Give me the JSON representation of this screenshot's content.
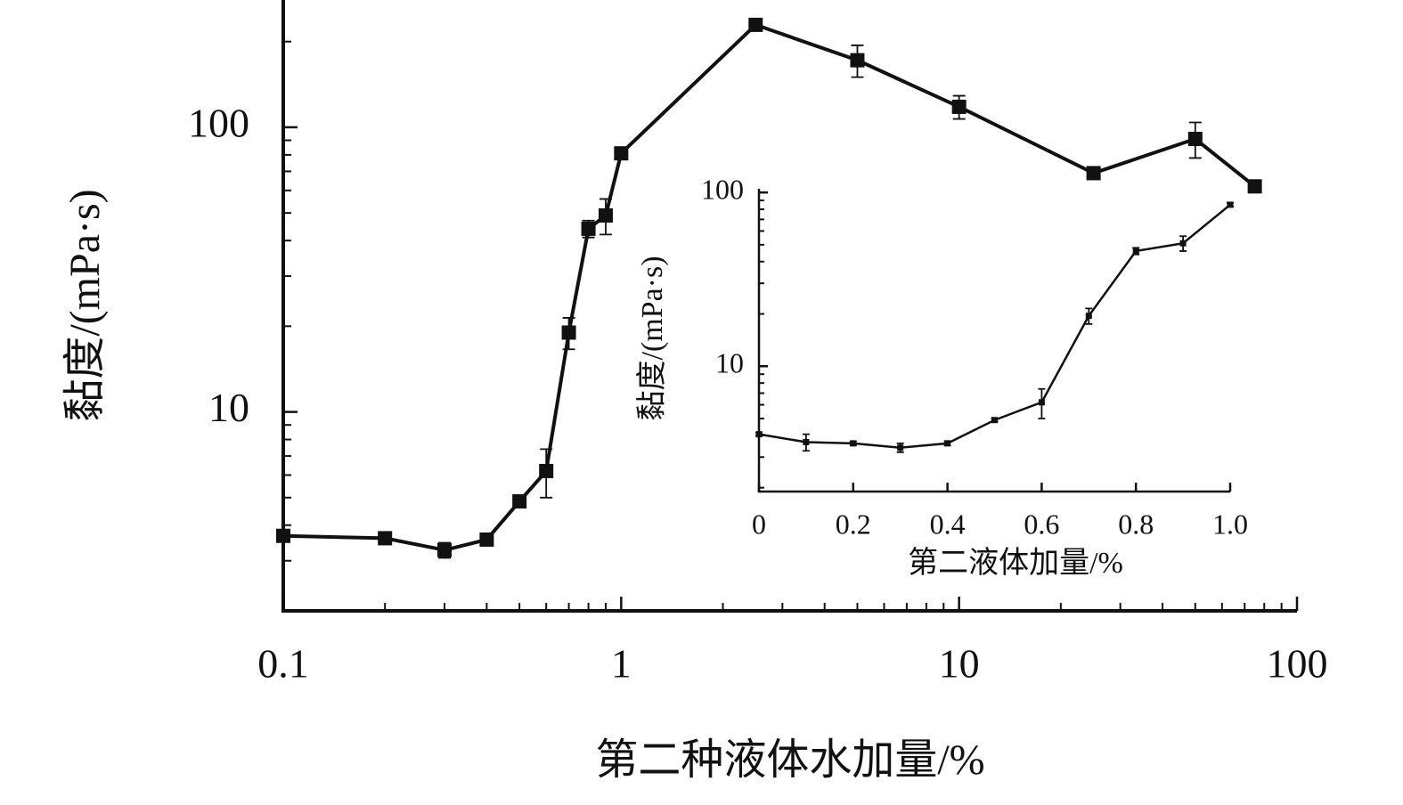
{
  "chart_data": [
    {
      "type": "line",
      "x_label": "第二种液体水加量/%",
      "y_label": "黏度/(mPa·s)",
      "xscale": "log",
      "yscale": "log",
      "color": "#111111",
      "x": [
        0.1,
        0.2,
        0.3,
        0.4,
        0.5,
        0.6,
        0.7,
        0.8,
        0.9,
        1.0,
        2.5,
        5,
        10,
        25,
        50,
        75
      ],
      "values": [
        3.67,
        3.6,
        3.27,
        3.56,
        4.85,
        6.2,
        19,
        44,
        49,
        81,
        229,
        172,
        118,
        69,
        91,
        62
      ],
      "errors": [
        0.1,
        0.1,
        0.2,
        0.1,
        0.1,
        1.2,
        2.4,
        3,
        7,
        2,
        5,
        22,
        11,
        3,
        13,
        2
      ],
      "xlim": [
        0.1,
        100
      ],
      "xticks": [
        0.1,
        1,
        10,
        100
      ],
      "ylim": [
        2,
        280
      ],
      "yticks": [
        10,
        100
      ]
    },
    {
      "type": "line",
      "x_label": "第二液体加量/%",
      "y_label": "黏度/(mPa·s)",
      "xscale": "linear",
      "yscale": "log",
      "color": "#111111",
      "x": [
        0,
        0.1,
        0.2,
        0.3,
        0.4,
        0.5,
        0.6,
        0.7,
        0.8,
        0.9,
        1.0
      ],
      "values": [
        4.06,
        3.66,
        3.6,
        3.4,
        3.6,
        4.9,
        6.2,
        19.5,
        46,
        51,
        85
      ],
      "errors": [
        0.1,
        0.4,
        0.1,
        0.2,
        0.1,
        0.1,
        1.2,
        2,
        2,
        5,
        2
      ],
      "xlim": [
        0,
        1.0
      ],
      "xticks": [
        0,
        0.2,
        0.4,
        0.6,
        0.8,
        {
          "value": 1.0,
          "label": "1.0"
        }
      ],
      "ylim": [
        1.9,
        105
      ],
      "yticks": [
        10,
        100
      ]
    }
  ]
}
